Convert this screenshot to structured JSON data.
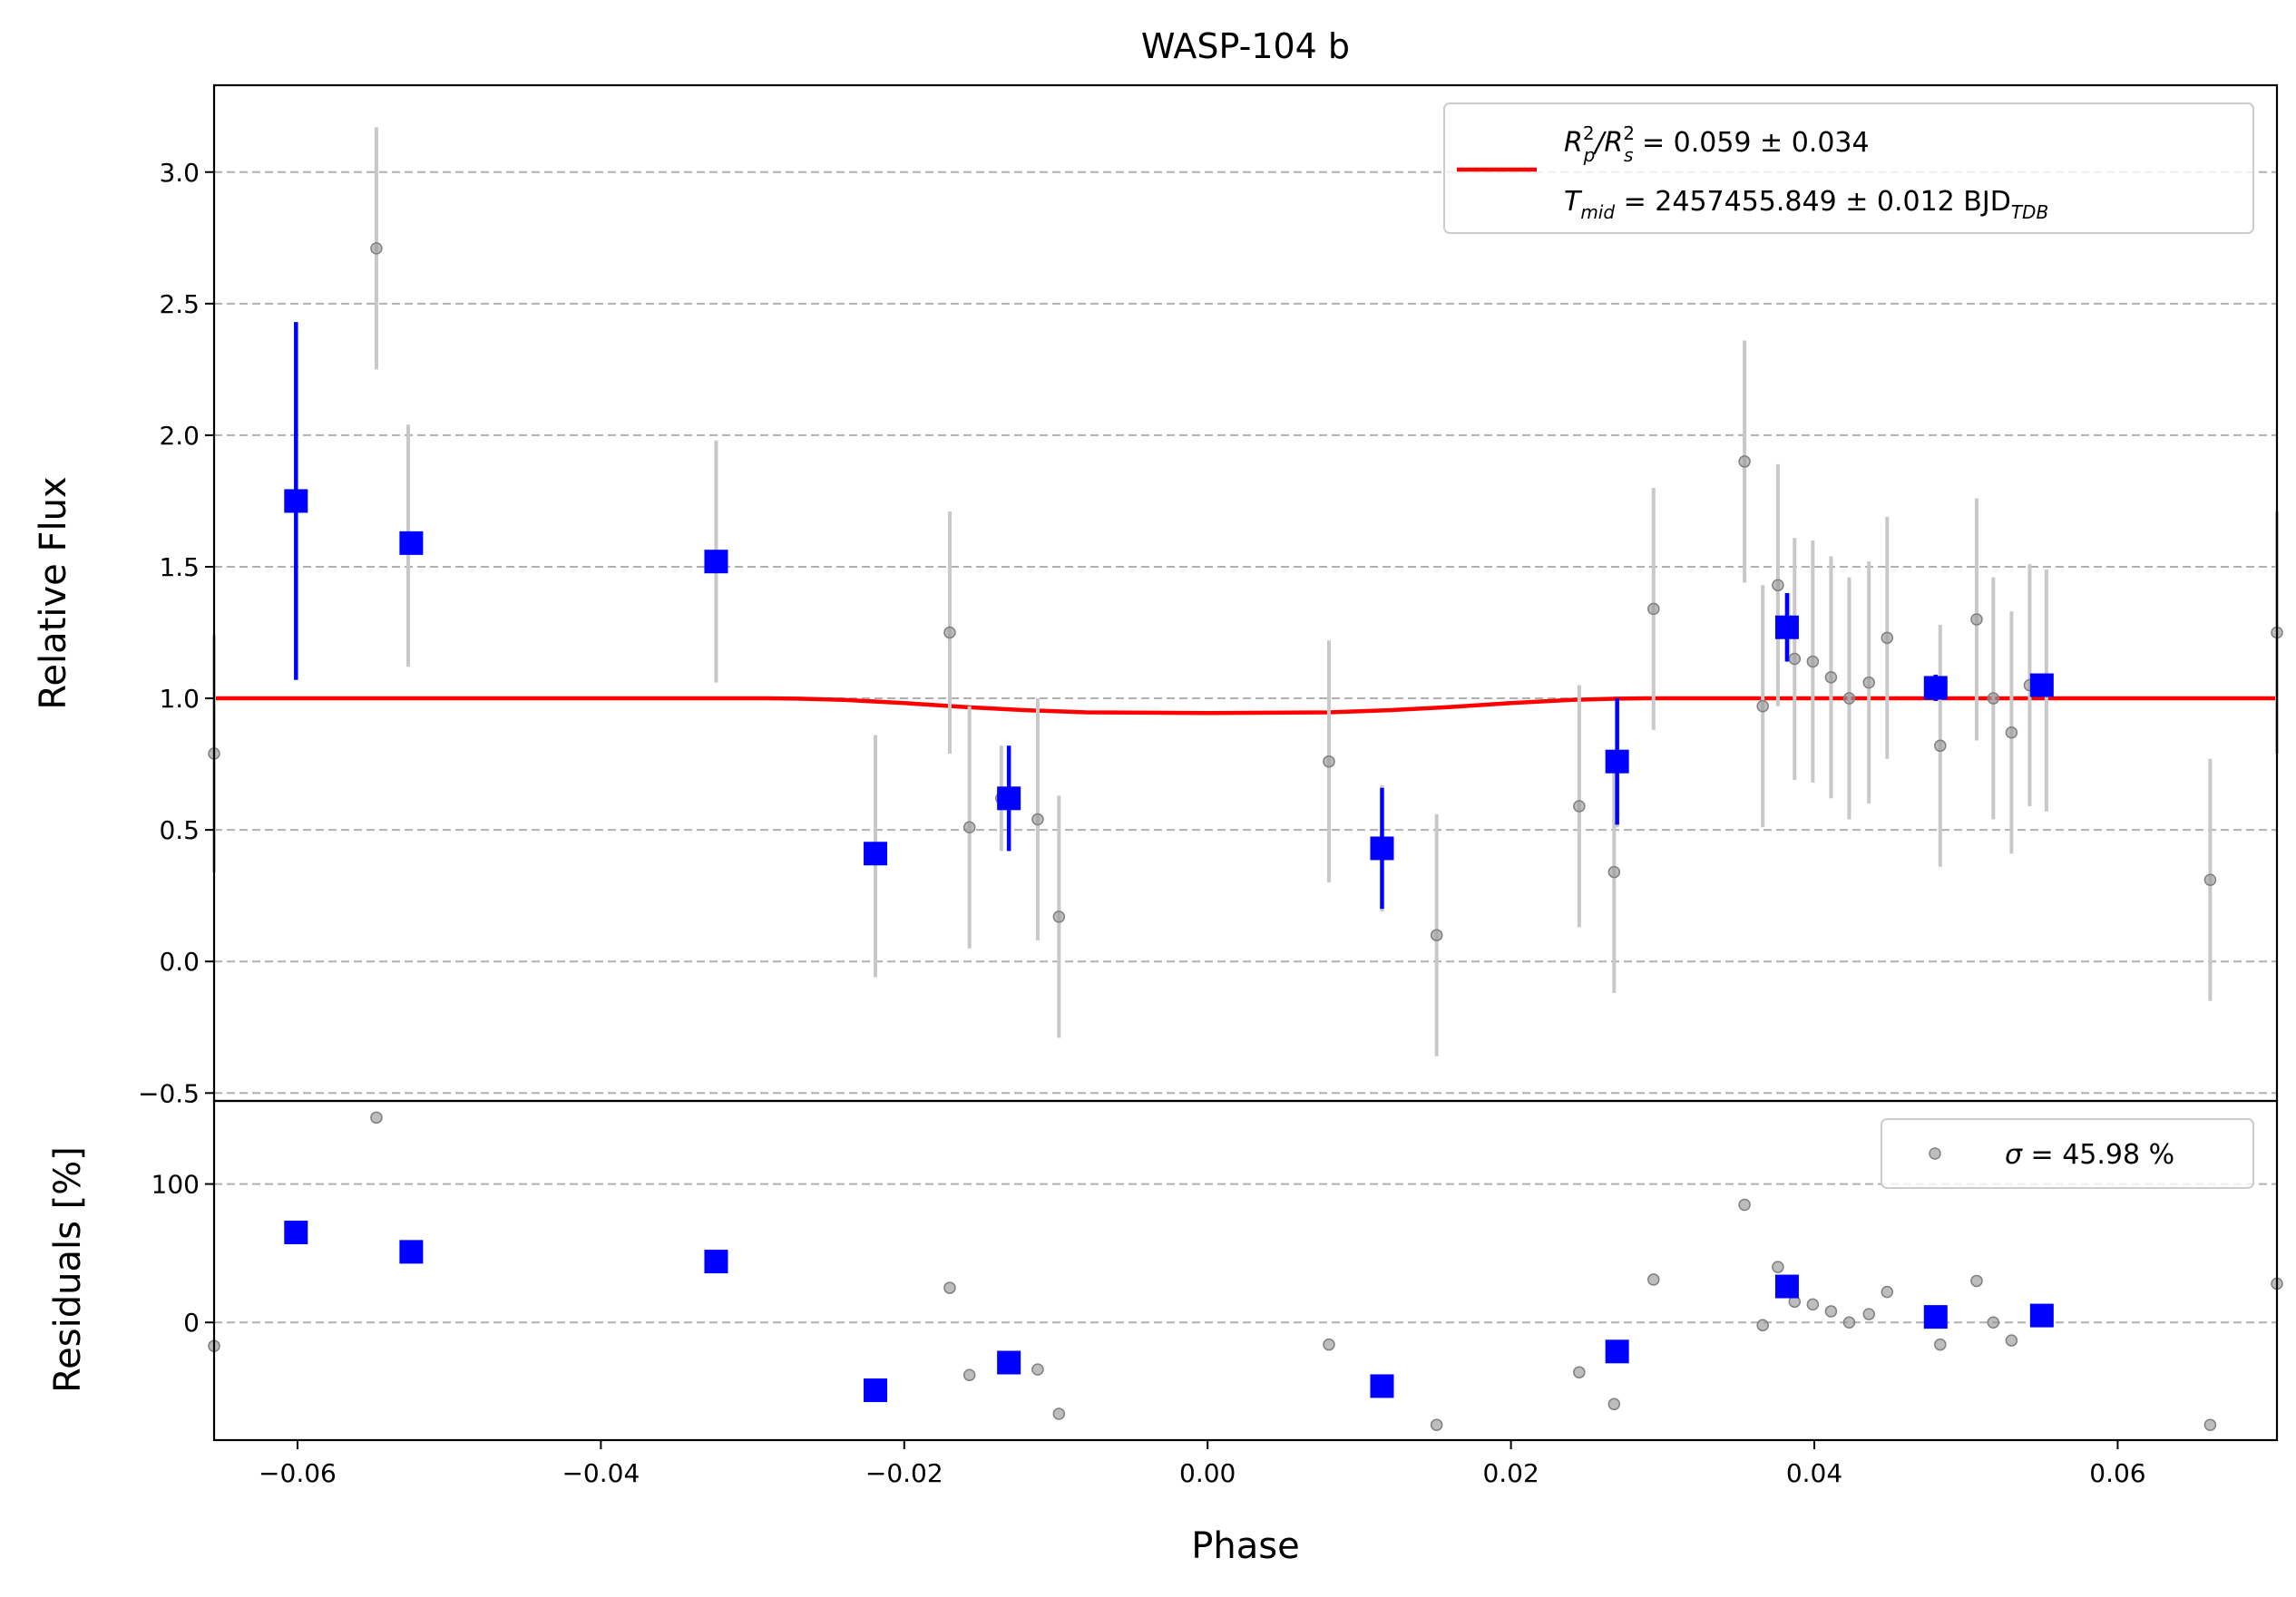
{
  "chart_data": [
    {
      "type": "scatter",
      "panel": "light curve",
      "title": "WASP-104 b",
      "xlabel": "",
      "ylabel": "Relative Flux",
      "xlim": [
        -0.0655,
        0.0705
      ],
      "ylim": [
        -0.53,
        3.33
      ],
      "yticks": [
        -0.5,
        0.0,
        0.5,
        1.0,
        1.5,
        2.0,
        2.5,
        3.0
      ],
      "ytick_labels": [
        "−0.5",
        "0.0",
        "0.5",
        "1.0",
        "1.5",
        "2.0",
        "2.5",
        "3.0"
      ],
      "grid": "horizontal dashed",
      "legend_position": "top-right",
      "legend": {
        "line1": {
          "R": "R",
          "p": "p",
          "two": "2",
          "slash": "/R",
          "s": "s",
          "rest": " = 0.059 ± 0.034"
        },
        "line2": {
          "T": "T",
          "mid": "mid",
          "rest": " = 2457455.849 ± 0.012 BJD",
          "tdb": "TDB"
        }
      },
      "colors": {
        "raw": "#999999",
        "raw_err": "#c8c8c8",
        "binned": "#0000ff",
        "model": "#ff0000"
      },
      "series": [
        {
          "kind": "raw",
          "x": [
            -0.0655,
            -0.0548,
            -0.0527,
            -0.0324,
            -0.0219,
            -0.017,
            -0.0157,
            -0.0136,
            -0.0112,
            -0.0098,
            0.008,
            0.0115,
            0.0151,
            0.0245,
            0.0268,
            0.027,
            0.0294,
            0.0354,
            0.0366,
            0.0376,
            0.0383,
            0.0387,
            0.0399,
            0.0411,
            0.0423,
            0.0436,
            0.0448,
            0.0483,
            0.0507,
            0.0518,
            0.053,
            0.0542,
            0.0553,
            0.0661,
            0.0705
          ],
          "y": [
            0.79,
            2.71,
            1.58,
            1.52,
            0.4,
            1.25,
            0.51,
            0.62,
            0.54,
            0.17,
            0.76,
            0.43,
            0.1,
            0.59,
            0.34,
            0.75,
            1.34,
            1.9,
            0.97,
            1.43,
            1.27,
            1.15,
            1.14,
            1.08,
            1.0,
            1.06,
            1.23,
            0.82,
            1.3,
            1.0,
            0.87,
            1.05,
            1.03,
            0.31,
            1.25
          ],
          "err": [
            0.45,
            0.46,
            0.46,
            0.46,
            0.46,
            0.46,
            0.46,
            0.2,
            0.46,
            0.46,
            0.46,
            0.24,
            0.46,
            0.46,
            0.46,
            0.24,
            0.46,
            0.46,
            0.46,
            0.46,
            0.13,
            0.46,
            0.46,
            0.46,
            0.46,
            0.46,
            0.46,
            0.46,
            0.46,
            0.46,
            0.46,
            0.46,
            0.46,
            0.46,
            0.46
          ]
        },
        {
          "kind": "binned",
          "x": [
            -0.0601,
            -0.0525,
            -0.0324,
            -0.0219,
            -0.0131,
            0.0115,
            0.027,
            0.0382,
            0.048,
            0.055
          ],
          "y": [
            1.75,
            1.59,
            1.52,
            0.41,
            0.62,
            0.43,
            0.76,
            1.27,
            1.04,
            1.05
          ],
          "err": [
            0.68,
            0.0,
            0.0,
            0.0,
            0.2,
            0.23,
            0.24,
            0.13,
            0.05,
            0.02
          ]
        },
        {
          "kind": "model",
          "x": [
            -0.0655,
            -0.029,
            -0.027,
            -0.024,
            -0.02,
            -0.016,
            -0.012,
            -0.008,
            0.0,
            0.008,
            0.012,
            0.016,
            0.02,
            0.024,
            0.027,
            0.029,
            0.0705
          ],
          "y": [
            1.0,
            1.0,
            0.999,
            0.994,
            0.982,
            0.967,
            0.955,
            0.947,
            0.944,
            0.947,
            0.955,
            0.967,
            0.982,
            0.994,
            0.999,
            1.0,
            1.0
          ]
        }
      ]
    },
    {
      "type": "scatter",
      "panel": "residuals",
      "xlabel": "Phase",
      "ylabel": "Residuals [%]",
      "xlim": [
        -0.0655,
        0.0705
      ],
      "ylim": [
        -85,
        160
      ],
      "xticks": [
        -0.06,
        -0.04,
        -0.02,
        0.0,
        0.02,
        0.04,
        0.06
      ],
      "xtick_labels": [
        "−0.06",
        "−0.04",
        "−0.02",
        "0.00",
        "0.02",
        "0.04",
        "0.06"
      ],
      "yticks": [
        0,
        100
      ],
      "ytick_labels": [
        "0",
        "100"
      ],
      "grid": "horizontal dashed",
      "legend_position": "top-right",
      "legend": {
        "sigma": "σ",
        "rest": " = 45.98 %"
      },
      "series": [
        {
          "kind": "raw",
          "x": [
            -0.0655,
            -0.0548,
            -0.017,
            -0.0157,
            -0.0112,
            -0.0098,
            0.008,
            0.0151,
            0.0245,
            0.0268,
            0.0294,
            0.0354,
            0.0366,
            0.0376,
            0.0387,
            0.0399,
            0.0411,
            0.0423,
            0.0436,
            0.0448,
            0.0483,
            0.0507,
            0.0518,
            0.053,
            0.0661,
            0.0705
          ],
          "y": [
            -17,
            148,
            25,
            -38,
            -34,
            -66,
            -16,
            -74,
            -36,
            -59,
            31,
            85,
            -2,
            40,
            15,
            13,
            8,
            0,
            6,
            22,
            -16,
            30,
            0,
            -13,
            -74,
            28
          ]
        },
        {
          "kind": "binned",
          "x": [
            -0.0601,
            -0.0525,
            -0.0324,
            -0.0219,
            -0.0131,
            0.0115,
            0.027,
            0.0382,
            0.048,
            0.055
          ],
          "y": [
            65,
            51,
            44,
            -49,
            -29,
            -46,
            -21,
            26,
            4,
            5
          ]
        }
      ]
    }
  ]
}
